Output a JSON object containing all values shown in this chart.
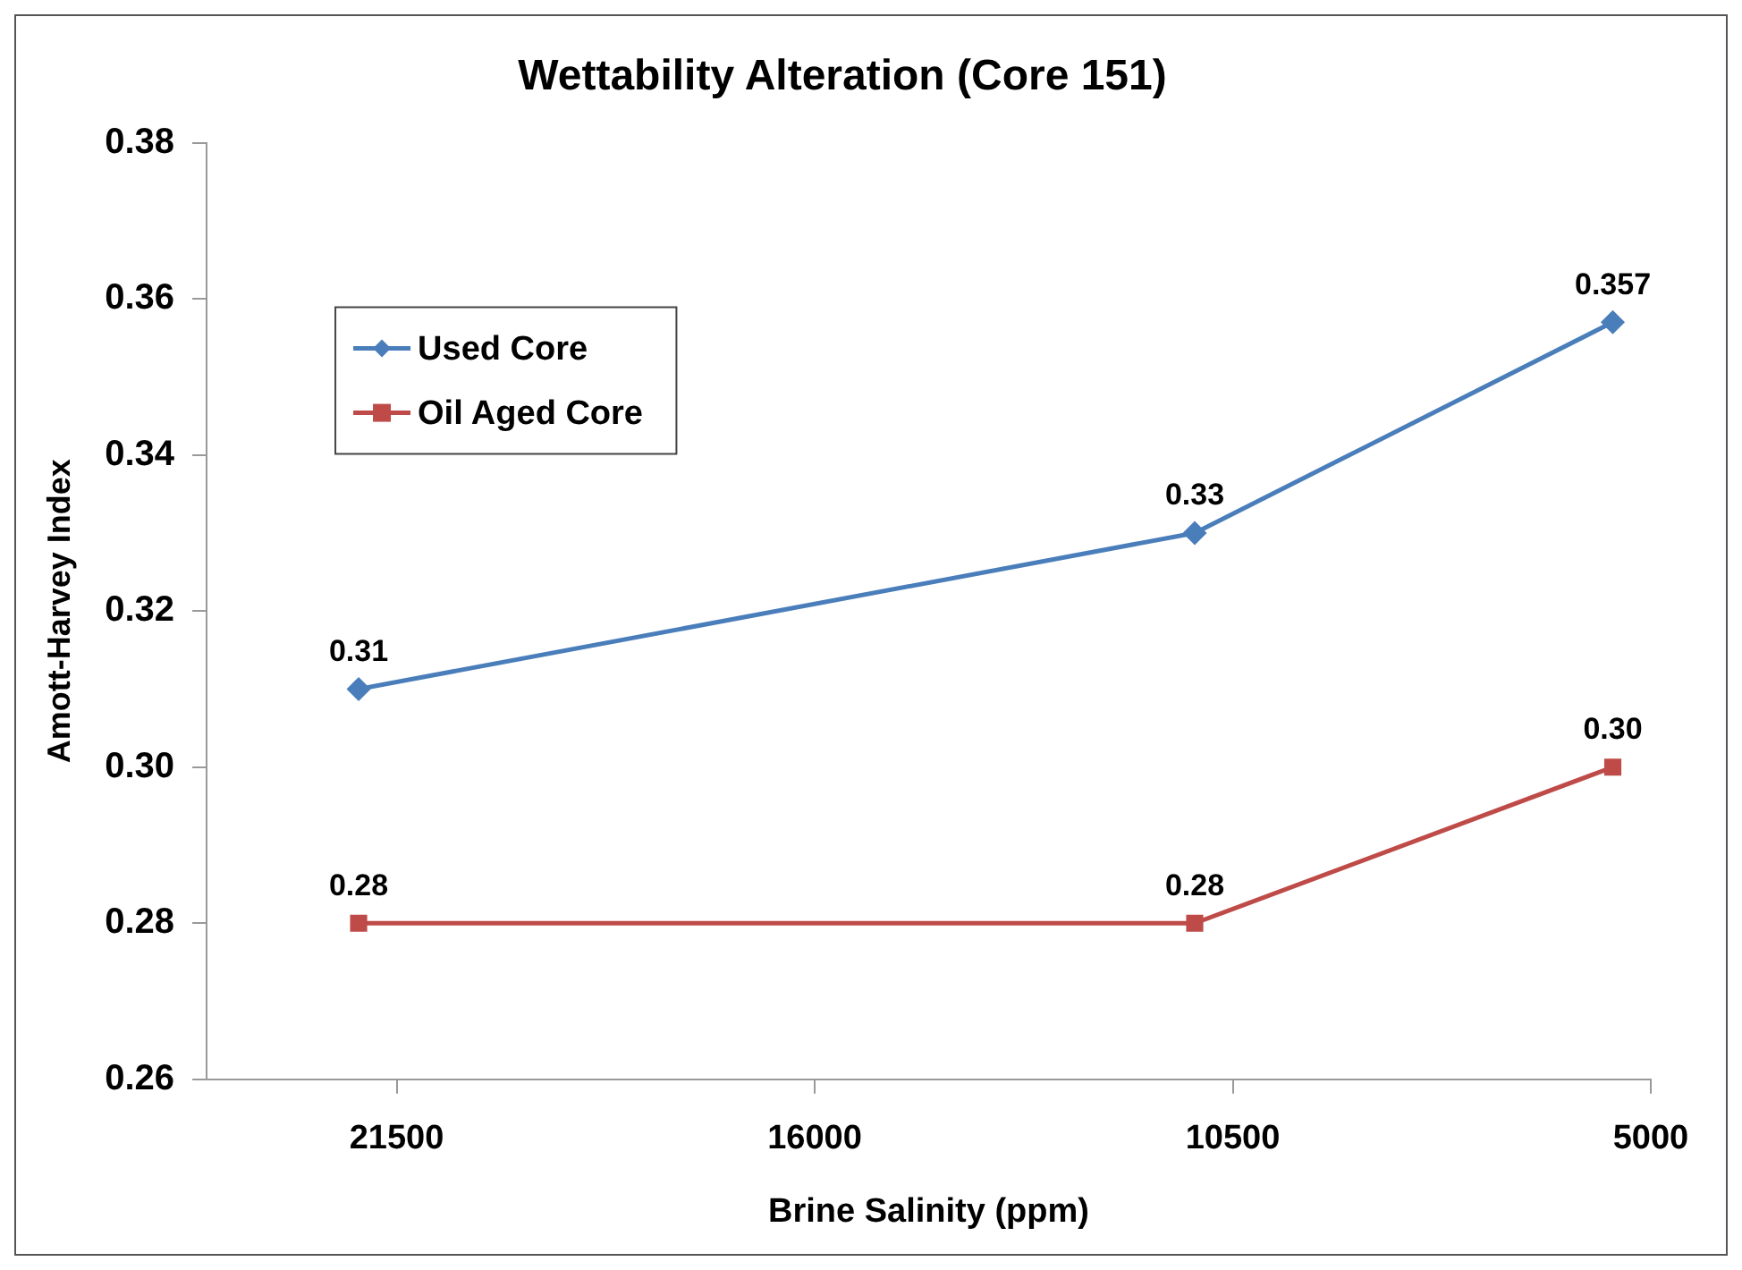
{
  "chart_data": {
    "type": "line",
    "title": "Wettability Alteration (Core 151)",
    "xlabel": "Brine Salinity (ppm)",
    "ylabel": "Amott-Harvey Index",
    "x": [
      22000,
      11000,
      5500
    ],
    "xlim": [
      24000,
      5000
    ],
    "xticks": [
      21500,
      16000,
      10500,
      5000
    ],
    "ylim": [
      0.26,
      0.38
    ],
    "yticks": [
      {
        "value": 0.26,
        "label": "0.26"
      },
      {
        "value": 0.28,
        "label": "0.28"
      },
      {
        "value": 0.3,
        "label": "0.30"
      },
      {
        "value": 0.32,
        "label": "0.32"
      },
      {
        "value": 0.34,
        "label": "0.34"
      },
      {
        "value": 0.36,
        "label": "0.36"
      },
      {
        "value": 0.38,
        "label": "0.38"
      }
    ],
    "series": [
      {
        "name": "Used Core",
        "color": "#4a7ebb",
        "marker": "diamond",
        "values": [
          0.31,
          0.33,
          0.357
        ],
        "value_labels": [
          "0.31",
          "0.33",
          "0.357"
        ]
      },
      {
        "name": "Oil Aged Core",
        "color": "#be4b48",
        "marker": "square",
        "values": [
          0.28,
          0.28,
          0.3
        ],
        "value_labels": [
          "0.28",
          "0.28",
          "0.30"
        ]
      }
    ],
    "grid": false,
    "legend": "top left"
  }
}
